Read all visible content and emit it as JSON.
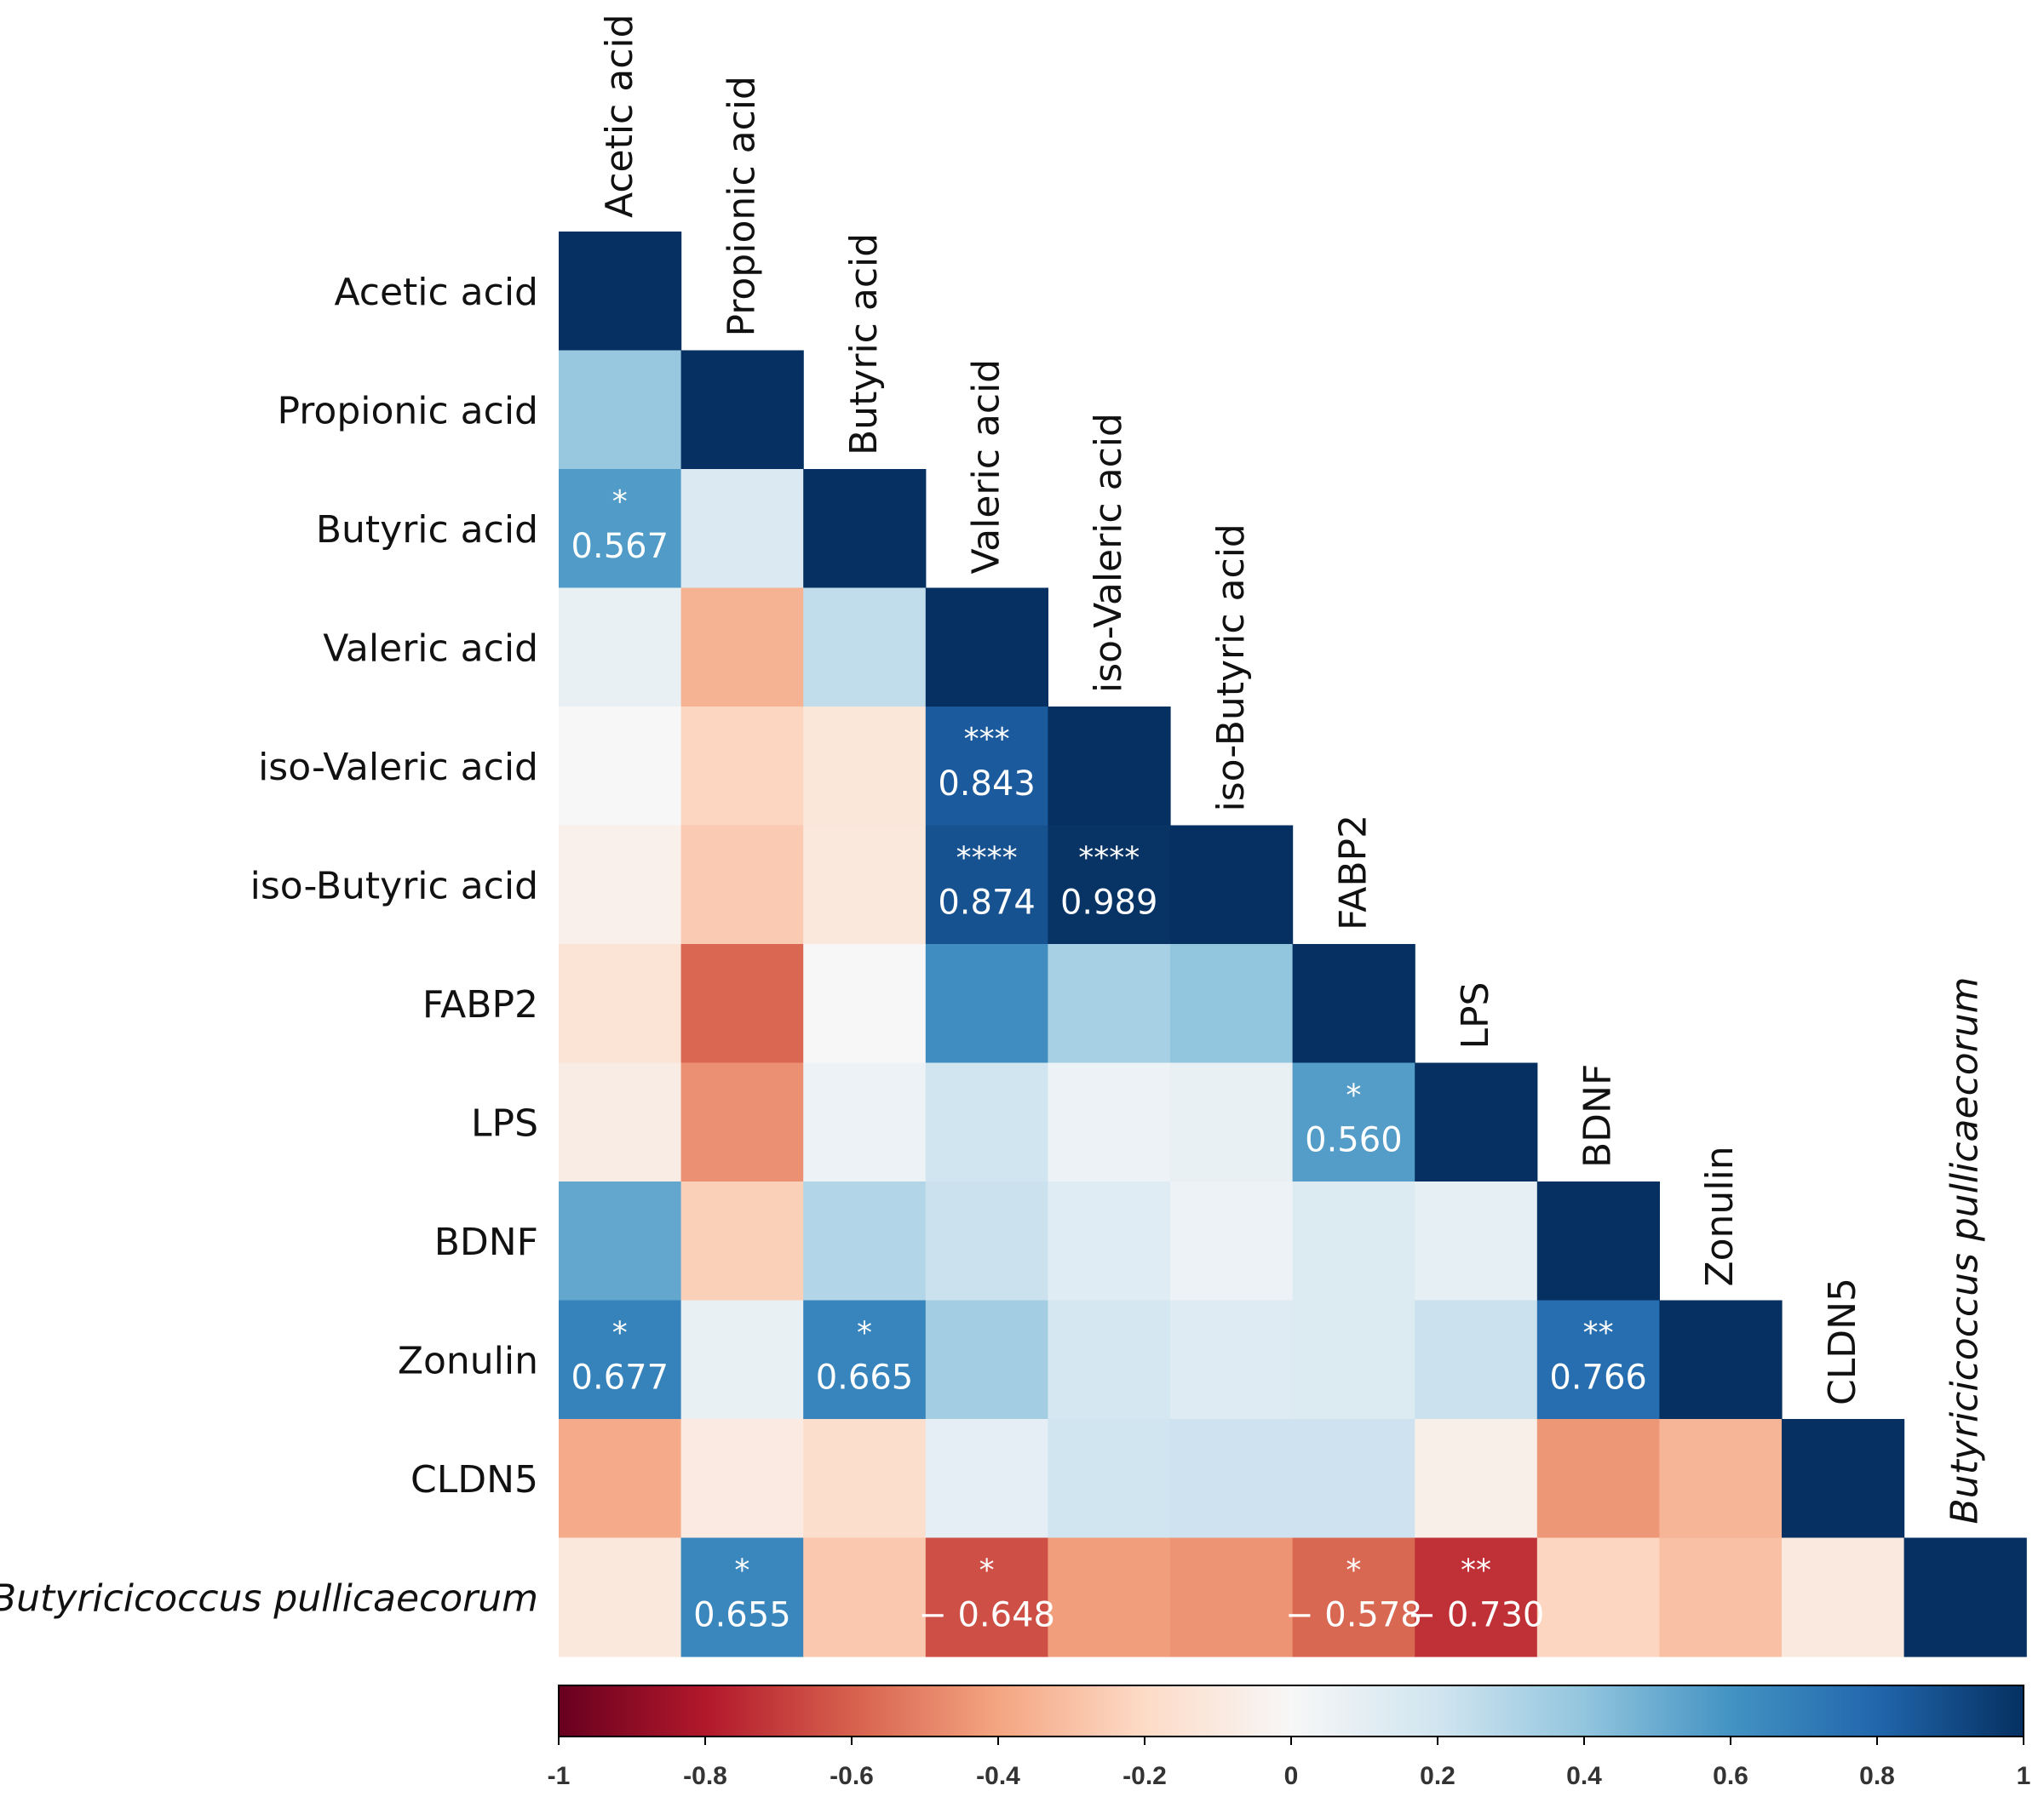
{
  "chart_data": {
    "type": "heatmap",
    "title": "",
    "variables": [
      "Acetic acid",
      "Propionic acid",
      "Butyric acid",
      "Valeric acid",
      "iso-Valeric acid",
      "iso-Butyric acid",
      "FABP2",
      "LPS",
      "BDNF",
      "Zonulin",
      "CLDN5",
      "Butyricicoccus pullicaecorum"
    ],
    "italic_variables": [
      "Butyricicoccus pullicaecorum"
    ],
    "matrix": [
      [
        1
      ],
      [
        0.38,
        1
      ],
      [
        0.567,
        0.15,
        1
      ],
      [
        0.08,
        -0.35,
        0.25,
        1
      ],
      [
        0.0,
        -0.22,
        -0.12,
        0.843,
        1
      ],
      [
        -0.05,
        -0.26,
        -0.11,
        0.874,
        0.989,
        1
      ],
      [
        -0.14,
        -0.58,
        0.0,
        0.62,
        0.33,
        0.4,
        1
      ],
      [
        -0.08,
        -0.46,
        0.06,
        0.2,
        0.06,
        0.08,
        0.56,
        1
      ],
      [
        0.52,
        -0.24,
        0.3,
        0.22,
        0.12,
        0.06,
        0.14,
        0.09,
        1
      ],
      [
        0.677,
        0.08,
        0.665,
        0.35,
        0.18,
        0.13,
        0.14,
        0.22,
        0.766,
        1
      ],
      [
        -0.38,
        -0.09,
        -0.18,
        0.1,
        0.2,
        0.21,
        0.21,
        -0.06,
        -0.44,
        -0.34,
        1
      ],
      [
        -0.11,
        0.655,
        -0.27,
        -0.648,
        -0.42,
        -0.45,
        -0.578,
        -0.73,
        -0.22,
        -0.3,
        -0.1,
        1
      ]
    ],
    "annotations": [
      {
        "row": 2,
        "col": 0,
        "stars": "*",
        "value": "0.567"
      },
      {
        "row": 4,
        "col": 3,
        "stars": "***",
        "value": "0.843"
      },
      {
        "row": 5,
        "col": 3,
        "stars": "****",
        "value": "0.874"
      },
      {
        "row": 5,
        "col": 4,
        "stars": "****",
        "value": "0.989"
      },
      {
        "row": 7,
        "col": 6,
        "stars": "*",
        "value": "0.560"
      },
      {
        "row": 9,
        "col": 0,
        "stars": "*",
        "value": "0.677"
      },
      {
        "row": 9,
        "col": 2,
        "stars": "*",
        "value": "0.665"
      },
      {
        "row": 9,
        "col": 8,
        "stars": "**",
        "value": "0.766"
      },
      {
        "row": 11,
        "col": 1,
        "stars": "*",
        "value": "0.655"
      },
      {
        "row": 11,
        "col": 3,
        "stars": "*",
        "value": "− 0.648"
      },
      {
        "row": 11,
        "col": 6,
        "stars": "*",
        "value": "− 0.578"
      },
      {
        "row": 11,
        "col": 7,
        "stars": "**",
        "value": "− 0.730"
      }
    ],
    "colorbar": {
      "range": [
        -1,
        1
      ],
      "ticks": [
        -1,
        -0.8,
        -0.6,
        -0.4,
        -0.2,
        0,
        0.2,
        0.4,
        0.6,
        0.8,
        1
      ],
      "tick_labels": [
        "-1",
        "-0.8",
        "-0.6",
        "-0.4",
        "-0.2",
        "0",
        "0.2",
        "0.4",
        "0.6",
        "0.8",
        "1"
      ],
      "colormap": "RdBu",
      "color_stops": [
        "#67001f",
        "#b2182b",
        "#d6604d",
        "#f4a582",
        "#fddbc7",
        "#f7f7f7",
        "#d1e5f0",
        "#92c5de",
        "#4393c3",
        "#2166ac",
        "#053061"
      ],
      "placement": "bottom"
    }
  }
}
